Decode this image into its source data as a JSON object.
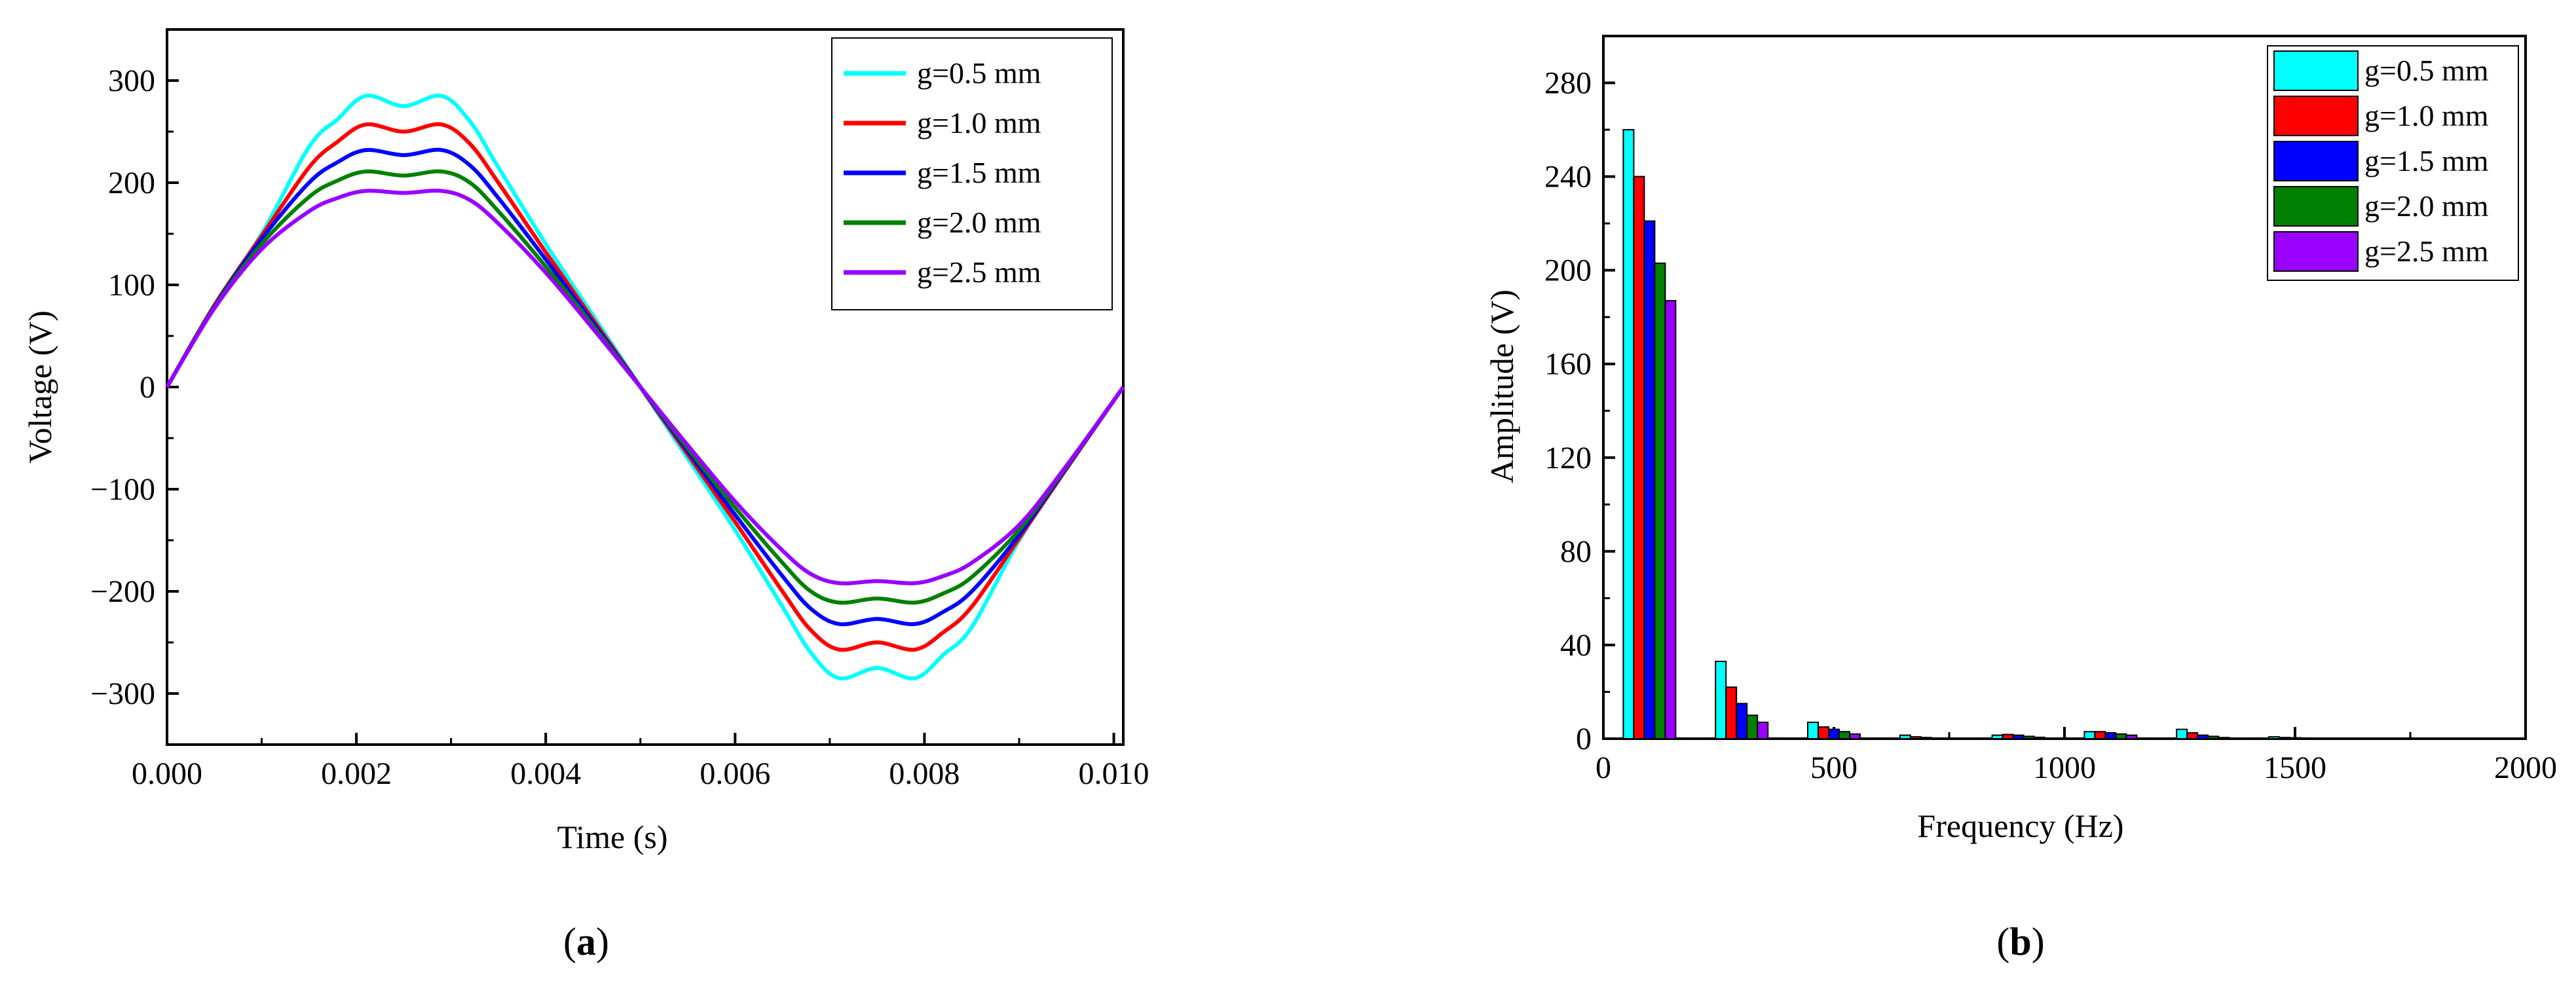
{
  "colors": {
    "g05": "#00ffff",
    "g10": "#ff0000",
    "g15": "#0000ff",
    "g20": "#008000",
    "g25": "#9900ff"
  },
  "chart_data": [
    {
      "type": "line",
      "panel_label": "(a)",
      "panel_label_parts": [
        "(",
        "a",
        ")"
      ],
      "xlabel": "Time (s)",
      "ylabel": "Voltage (V)",
      "xlim": [
        0,
        0.0101
      ],
      "ylim": [
        -350,
        350
      ],
      "xticks": [
        0,
        0.002,
        0.004,
        0.006,
        0.008,
        0.01
      ],
      "xtick_labels": [
        "0.000",
        "0.002",
        "0.004",
        "0.006",
        "0.008",
        "0.010"
      ],
      "yticks": [
        -300,
        -200,
        -100,
        0,
        100,
        200,
        300
      ],
      "ytick_labels": [
        "−300",
        "−200",
        "−100",
        "0",
        "100",
        "200",
        "300"
      ],
      "legend_position": "top-right",
      "x": [
        0,
        0.0005,
        0.001,
        0.0015,
        0.0018,
        0.0021,
        0.0025,
        0.0029,
        0.0032,
        0.0035,
        0.004,
        0.0045,
        0.005,
        0.0055,
        0.006,
        0.0065,
        0.0068,
        0.0071,
        0.0075,
        0.0079,
        0.0082,
        0.0085,
        0.009,
        0.0095,
        0.0101
      ],
      "series": [
        {
          "name": "g=0.5 mm",
          "color_key": "g05",
          "values": [
            0,
            80,
            150,
            235,
            262,
            285,
            275,
            285,
            260,
            215,
            140,
            70,
            0,
            -70,
            -140,
            -215,
            -260,
            -285,
            -275,
            -285,
            -262,
            -235,
            -150,
            -80,
            0
          ]
        },
        {
          "name": "g=1.0 mm",
          "color_key": "g10",
          "values": [
            0,
            80,
            148,
            215,
            240,
            257,
            250,
            257,
            238,
            200,
            132,
            66,
            0,
            -66,
            -132,
            -200,
            -238,
            -257,
            -250,
            -257,
            -240,
            -215,
            -148,
            -80,
            0
          ]
        },
        {
          "name": "g=1.5 mm",
          "color_key": "g15",
          "values": [
            0,
            79,
            145,
            200,
            220,
            232,
            227,
            232,
            217,
            185,
            125,
            63,
            0,
            -63,
            -125,
            -185,
            -217,
            -232,
            -227,
            -232,
            -220,
            -200,
            -145,
            -79,
            0
          ]
        },
        {
          "name": "g=2.0 mm",
          "color_key": "g20",
          "values": [
            0,
            78,
            140,
            186,
            202,
            211,
            207,
            211,
            200,
            172,
            118,
            60,
            0,
            -60,
            -118,
            -172,
            -200,
            -211,
            -207,
            -211,
            -202,
            -186,
            -140,
            -78,
            0
          ]
        },
        {
          "name": "g=2.5 mm",
          "color_key": "g25",
          "values": [
            0,
            77,
            135,
            172,
            185,
            192,
            190,
            192,
            183,
            160,
            112,
            57,
            0,
            -57,
            -112,
            -160,
            -183,
            -192,
            -190,
            -192,
            -185,
            -172,
            -135,
            -77,
            0
          ]
        }
      ]
    },
    {
      "type": "bar",
      "panel_label": "(b)",
      "panel_label_parts": [
        "(",
        "b",
        ")"
      ],
      "xlabel": "Frequency (Hz)",
      "ylabel": "Amplitude (V)",
      "xlim": [
        0,
        2000
      ],
      "ylim": [
        0,
        300
      ],
      "xticks": [
        0,
        500,
        1000,
        1500,
        2000
      ],
      "xtick_labels": [
        "0",
        "500",
        "1000",
        "1500",
        "2000"
      ],
      "yticks": [
        0,
        40,
        80,
        120,
        160,
        200,
        240,
        280
      ],
      "ytick_labels": [
        "0",
        "40",
        "80",
        "120",
        "160",
        "200",
        "240",
        "280"
      ],
      "legend_position": "top-right",
      "categories": [
        100,
        300,
        500,
        700,
        900,
        1100,
        1300,
        1500
      ],
      "series": [
        {
          "name": "g=0.5 mm",
          "color_key": "g05",
          "values": [
            260,
            33,
            7,
            1.5,
            1.5,
            3,
            4,
            0.8
          ]
        },
        {
          "name": "g=1.0 mm",
          "color_key": "g10",
          "values": [
            240,
            22,
            5,
            0.8,
            1.8,
            3,
            2.5,
            0.5
          ]
        },
        {
          "name": "g=1.5 mm",
          "color_key": "g15",
          "values": [
            221,
            15,
            4,
            0.5,
            1.5,
            2.5,
            1.5,
            0.4
          ]
        },
        {
          "name": "g=2.0 mm",
          "color_key": "g20",
          "values": [
            203,
            10,
            3,
            0.3,
            1,
            2,
            1,
            0.3
          ]
        },
        {
          "name": "g=2.5 mm",
          "color_key": "g25",
          "values": [
            187,
            7,
            2,
            0.2,
            0.6,
            1.5,
            0.5,
            0.2
          ]
        }
      ]
    }
  ]
}
